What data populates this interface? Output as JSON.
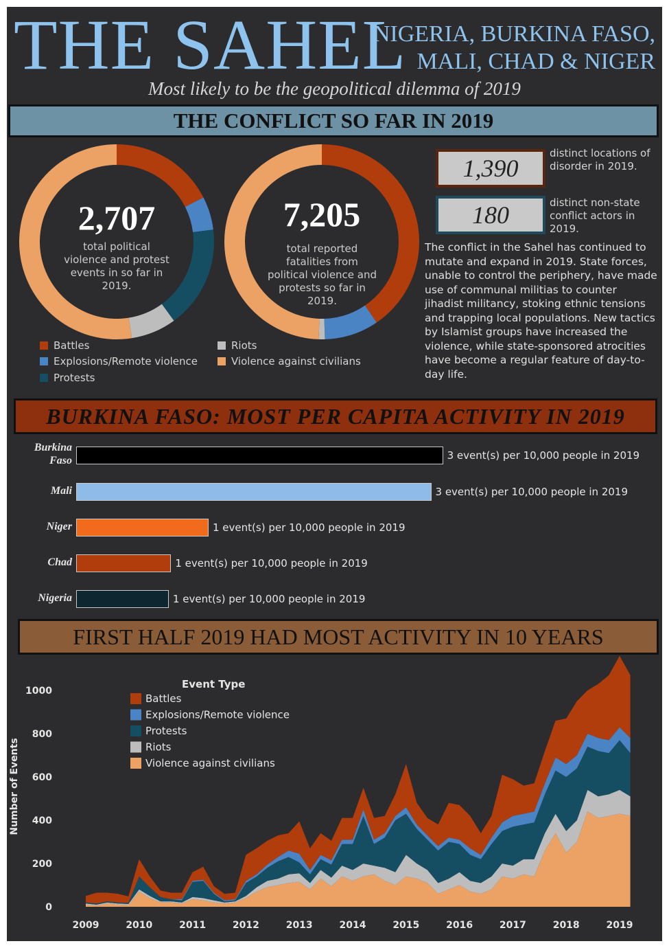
{
  "header": {
    "title": "THE SAHEL",
    "countries_line1": "NIGERIA, BURKINA FASO,",
    "countries_line2": "MALI, CHAD & NIGER",
    "tagline": "Most likely to be the geopolitical dilemma of 2019"
  },
  "section1": {
    "banner": "THE CONFLICT SO FAR IN 2019",
    "donut1_number": "2,707",
    "donut1_caption": "total political violence and protest events in so far in 2019.",
    "donut2_number": "7,205",
    "donut2_caption": "total reported fatalities from political violence and protests so far in 2019.",
    "stat1_value": "1,390",
    "stat1_caption": "distinct locations of disorder in 2019.",
    "stat2_value": "180",
    "stat2_caption": "distinct non-state conflict actors in 2019.",
    "paragraph": "The conflict in the Sahel has continued to mutate and expand in 2019. State forces, unable to control the periphery, have made use of communal militias to counter jihadist militancy, stoking ethnic tensions and trapping local populations. New tactics by Islamist groups have increased the violence, while state-sponsored atrocities have become a regular feature of day-to-day life.",
    "legend": [
      "Battles",
      "Explosions/Remote violence",
      "Protests",
      "Riots",
      "Violence against civilians"
    ]
  },
  "section2": {
    "banner": "BURKINA FASO: MOST PER CAPITA ACTIVITY IN 2019"
  },
  "section3": {
    "banner": "FIRST HALF 2019 HAD MOST ACTIVITY IN 10 YEARS",
    "legend_title": "Event Type",
    "ylabel": "Number of Events"
  },
  "colors": {
    "battles": "#b13d0c",
    "explosions": "#4b84c4",
    "protests": "#154d63",
    "riots": "#bdbdbd",
    "vac": "#eba264"
  },
  "chart_data": [
    {
      "type": "pie",
      "title": "2,707",
      "categories": [
        "Battles",
        "Explosions/Remote violence",
        "Protests",
        "Riots",
        "Violence against civilians"
      ],
      "values": [
        0.175,
        0.055,
        0.17,
        0.075,
        0.525
      ]
    },
    {
      "type": "pie",
      "title": "7,205",
      "categories": [
        "Battles",
        "Explosions/Remote violence",
        "Protests",
        "Riots",
        "Violence against civilians"
      ],
      "values": [
        0.405,
        0.09,
        0.0,
        0.01,
        0.495
      ]
    },
    {
      "type": "bar",
      "orientation": "horizontal",
      "categories": [
        "Burkina Faso",
        "Mali",
        "Niger",
        "Chad",
        "Nigeria"
      ],
      "values": [
        3.13,
        3.03,
        1.13,
        0.81,
        0.79
      ],
      "labels": [
        "3 event(s) per 10,000 people in 2019",
        "3 event(s) per 10,000 people in 2019",
        "1 event(s) per 10,000 people in 2019",
        "1 event(s) per 10,000 people in 2019",
        "1 event(s) per 10,000 people in 2019"
      ],
      "bar_colors": [
        "#000000",
        "#8ebbe8",
        "#f26a1b",
        "#b13d0c",
        "#0d2630"
      ]
    },
    {
      "type": "area",
      "stacked": true,
      "ylabel": "Number of Events",
      "ylim": [
        0,
        1100
      ],
      "yticks": [
        0,
        200,
        400,
        600,
        800,
        1000
      ],
      "xticks": [
        "2009",
        "2010",
        "2011",
        "2012",
        "2013",
        "2014",
        "2015",
        "2016",
        "2017",
        "2018",
        "2019"
      ],
      "xlim": [
        2009,
        2019.25
      ],
      "x": [
        2009.0,
        2009.2,
        2009.4,
        2009.6,
        2009.8,
        2010.0,
        2010.2,
        2010.4,
        2010.6,
        2010.8,
        2011.0,
        2011.2,
        2011.4,
        2011.6,
        2011.8,
        2012.0,
        2012.2,
        2012.4,
        2012.6,
        2012.8,
        2013.0,
        2013.2,
        2013.4,
        2013.6,
        2013.8,
        2014.0,
        2014.2,
        2014.4,
        2014.6,
        2014.8,
        2015.0,
        2015.2,
        2015.4,
        2015.6,
        2015.8,
        2016.0,
        2016.2,
        2016.4,
        2016.6,
        2016.8,
        2017.0,
        2017.2,
        2017.4,
        2017.6,
        2017.8,
        2018.0,
        2018.2,
        2018.4,
        2018.6,
        2018.8,
        2019.0,
        2019.2
      ],
      "series": [
        {
          "name": "Violence against civilians",
          "values": [
            10,
            5,
            15,
            10,
            8,
            70,
            40,
            20,
            20,
            15,
            35,
            30,
            20,
            15,
            20,
            40,
            70,
            90,
            100,
            110,
            115,
            80,
            130,
            95,
            140,
            120,
            140,
            150,
            120,
            100,
            140,
            130,
            110,
            60,
            80,
            100,
            70,
            60,
            80,
            140,
            130,
            150,
            140,
            260,
            340,
            250,
            300,
            440,
            410,
            420,
            430,
            420
          ]
        },
        {
          "name": "Riots",
          "values": [
            5,
            5,
            5,
            5,
            5,
            10,
            10,
            5,
            5,
            5,
            10,
            10,
            10,
            5,
            5,
            10,
            20,
            30,
            30,
            40,
            40,
            30,
            40,
            40,
            50,
            50,
            60,
            40,
            60,
            60,
            100,
            70,
            60,
            50,
            50,
            60,
            50,
            50,
            60,
            60,
            60,
            70,
            80,
            80,
            90,
            100,
            100,
            100,
            100,
            100,
            110,
            90
          ]
        },
        {
          "name": "Protests",
          "values": [
            5,
            5,
            5,
            5,
            5,
            60,
            40,
            20,
            10,
            10,
            70,
            80,
            30,
            5,
            5,
            60,
            50,
            60,
            80,
            80,
            50,
            40,
            50,
            60,
            100,
            120,
            220,
            100,
            140,
            240,
            190,
            160,
            140,
            150,
            170,
            130,
            120,
            110,
            150,
            150,
            180,
            160,
            170,
            180,
            200,
            250,
            240,
            200,
            210,
            190,
            230,
            200
          ]
        },
        {
          "name": "Explosions/Remote violence",
          "values": [
            0,
            0,
            0,
            0,
            0,
            0,
            0,
            0,
            0,
            5,
            5,
            5,
            5,
            5,
            5,
            10,
            10,
            15,
            20,
            30,
            40,
            20,
            20,
            20,
            20,
            20,
            30,
            20,
            20,
            20,
            30,
            20,
            20,
            20,
            20,
            20,
            30,
            20,
            30,
            40,
            50,
            50,
            50,
            50,
            60,
            60,
            60,
            60,
            60,
            60,
            60,
            70
          ]
        },
        {
          "name": "Battles",
          "values": [
            30,
            50,
            40,
            40,
            30,
            80,
            50,
            30,
            30,
            30,
            40,
            60,
            30,
            30,
            30,
            120,
            120,
            110,
            100,
            80,
            150,
            100,
            100,
            90,
            100,
            100,
            100,
            100,
            80,
            100,
            200,
            100,
            80,
            100,
            160,
            160,
            150,
            100,
            100,
            220,
            170,
            130,
            130,
            150,
            170,
            210,
            250,
            200,
            250,
            300,
            330,
            290
          ]
        }
      ]
    }
  ]
}
